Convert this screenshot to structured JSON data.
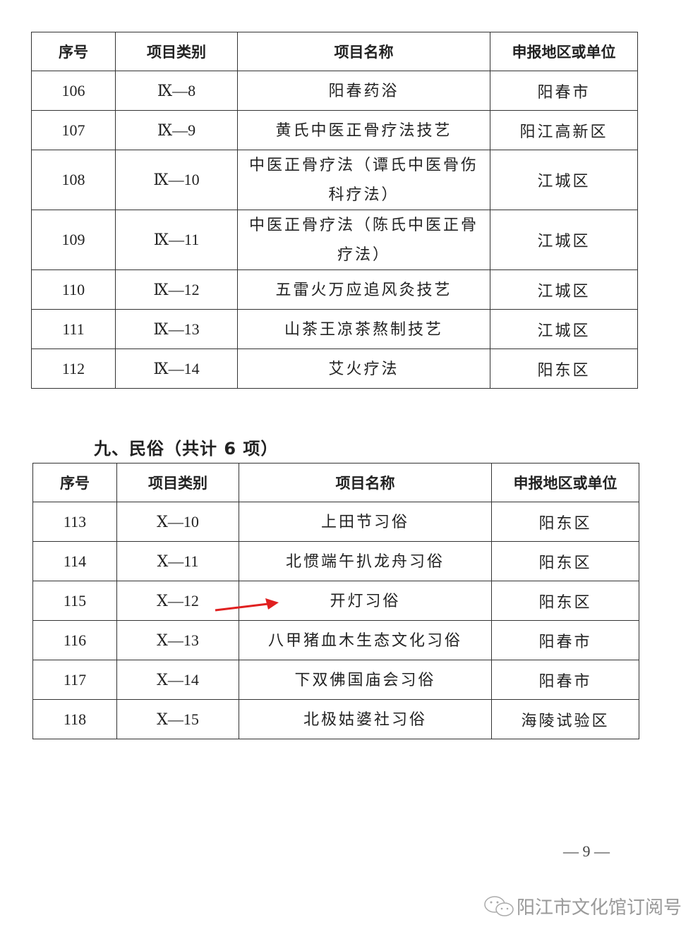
{
  "table1": {
    "headers": [
      "序号",
      "项目类别",
      "项目名称",
      "申报地区或单位"
    ],
    "rows": [
      {
        "no": "106",
        "cat": "Ⅸ—8",
        "name": "阳春药浴",
        "region": "阳春市"
      },
      {
        "no": "107",
        "cat": "Ⅸ—9",
        "name": "黄氏中医正骨疗法技艺",
        "region": "阳江高新区"
      },
      {
        "no": "108",
        "cat": "Ⅸ—10",
        "name": "中医正骨疗法（谭氏中医骨伤科疗法）",
        "region": "江城区"
      },
      {
        "no": "109",
        "cat": "Ⅸ—11",
        "name": "中医正骨疗法（陈氏中医正骨疗法）",
        "region": "江城区"
      },
      {
        "no": "110",
        "cat": "Ⅸ—12",
        "name": "五雷火万应追风灸技艺",
        "region": "江城区"
      },
      {
        "no": "111",
        "cat": "Ⅸ—13",
        "name": "山茶王凉茶熬制技艺",
        "region": "江城区"
      },
      {
        "no": "112",
        "cat": "Ⅸ—14",
        "name": "艾火疗法",
        "region": "阳东区"
      }
    ]
  },
  "section_heading": "九、民俗（共计 6 项）",
  "table2": {
    "headers": [
      "序号",
      "项目类别",
      "项目名称",
      "申报地区或单位"
    ],
    "rows": [
      {
        "no": "113",
        "cat": "Ⅹ—10",
        "name": "上田节习俗",
        "region": "阳东区"
      },
      {
        "no": "114",
        "cat": "Ⅹ—11",
        "name": "北惯端午扒龙舟习俗",
        "region": "阳东区"
      },
      {
        "no": "115",
        "cat": "Ⅹ—12",
        "name": "开灯习俗",
        "region": "阳东区"
      },
      {
        "no": "116",
        "cat": "Ⅹ—13",
        "name": "八甲猪血木生态文化习俗",
        "region": "阳春市"
      },
      {
        "no": "117",
        "cat": "Ⅹ—14",
        "name": "下双佛国庙会习俗",
        "region": "阳春市"
      },
      {
        "no": "118",
        "cat": "Ⅹ—15",
        "name": "北极姑婆社习俗",
        "region": "海陵试验区"
      }
    ]
  },
  "annotation": {
    "icon": "red-arrow-icon",
    "color": "#e02020",
    "points_to_row": "115"
  },
  "page_number": "— 9 —",
  "watermark": {
    "icon": "wechat-icon",
    "text": "阳江市文化馆订阅号"
  }
}
